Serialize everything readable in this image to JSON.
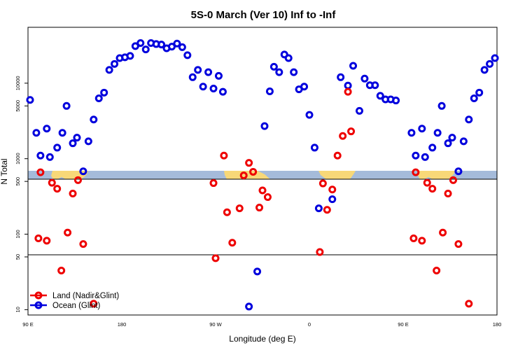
{
  "colors": {
    "land": "#ee0000",
    "ocean": "#0000dd",
    "map_ocean": "#a5bbda",
    "map_land": "#f8d878",
    "axis": "#000000",
    "reference_line": "#000000"
  },
  "chart_data": {
    "type": "scatter",
    "title": "5S-0 March (Ver 10)   Inf to -Inf",
    "xlabel": "Longitude (deg E)",
    "ylabel": "N Total",
    "x_scale": "cumulative longitude, 90E to 180 via 360 deg",
    "xlim": [
      0,
      450
    ],
    "x_ticks": [
      {
        "x": 0,
        "label": "90 E"
      },
      {
        "x": 90,
        "label": "180"
      },
      {
        "x": 180,
        "label": "90 W"
      },
      {
        "x": 270,
        "label": "0"
      },
      {
        "x": 360,
        "label": "90 E"
      },
      {
        "x": 450,
        "label": "180"
      }
    ],
    "y_scale": "log",
    "ylim": [
      8.5,
      55000
    ],
    "y_ticks": [
      {
        "y": 10,
        "label": "10"
      },
      {
        "y": 50,
        "label": "50"
      },
      {
        "y": 100,
        "label": "100"
      },
      {
        "y": 500,
        "label": "500"
      },
      {
        "y": 1000,
        "label": "1000"
      },
      {
        "y": 5000,
        "label": "5000"
      },
      {
        "y": 10000,
        "label": "10000"
      }
    ],
    "reference_lines": [
      {
        "y": 50
      },
      {
        "y": 500
      }
    ],
    "map_strip": {
      "y_low": 500,
      "y_high": 680
    },
    "legend": {
      "position": "bottom-left"
    },
    "series": [
      {
        "name": "Land (Nadir&Glint)",
        "color": "#ee0000",
        "points": [
          {
            "x": 12,
            "y": 660
          },
          {
            "x": 10,
            "y": 88
          },
          {
            "x": 18,
            "y": 82
          },
          {
            "x": 23,
            "y": 480
          },
          {
            "x": 28,
            "y": 400
          },
          {
            "x": 32,
            "y": 33
          },
          {
            "x": 38,
            "y": 105
          },
          {
            "x": 43,
            "y": 345
          },
          {
            "x": 48,
            "y": 520
          },
          {
            "x": 53,
            "y": 74
          },
          {
            "x": 63,
            "y": 12
          },
          {
            "x": 178,
            "y": 475
          },
          {
            "x": 180,
            "y": 48
          },
          {
            "x": 188,
            "y": 1100
          },
          {
            "x": 191,
            "y": 195
          },
          {
            "x": 196,
            "y": 77
          },
          {
            "x": 203,
            "y": 220
          },
          {
            "x": 207,
            "y": 600
          },
          {
            "x": 212,
            "y": 880
          },
          {
            "x": 216,
            "y": 670
          },
          {
            "x": 222,
            "y": 225
          },
          {
            "x": 225,
            "y": 380
          },
          {
            "x": 230,
            "y": 310
          },
          {
            "x": 280,
            "y": 58
          },
          {
            "x": 283,
            "y": 470
          },
          {
            "x": 287,
            "y": 210
          },
          {
            "x": 292,
            "y": 390
          },
          {
            "x": 297,
            "y": 1100
          },
          {
            "x": 302,
            "y": 2000
          },
          {
            "x": 307,
            "y": 7700
          },
          {
            "x": 310,
            "y": 2300
          },
          {
            "x": 372,
            "y": 660
          },
          {
            "x": 370,
            "y": 88
          },
          {
            "x": 378,
            "y": 82
          },
          {
            "x": 383,
            "y": 480
          },
          {
            "x": 388,
            "y": 400
          },
          {
            "x": 392,
            "y": 33
          },
          {
            "x": 398,
            "y": 105
          },
          {
            "x": 403,
            "y": 345
          },
          {
            "x": 408,
            "y": 520
          },
          {
            "x": 413,
            "y": 74
          },
          {
            "x": 423,
            "y": 12
          }
        ]
      },
      {
        "name": "Ocean (Glint)",
        "color": "#0000dd",
        "points": [
          {
            "x": 2,
            "y": 6000
          },
          {
            "x": 8,
            "y": 2200
          },
          {
            "x": 12,
            "y": 1100
          },
          {
            "x": 18,
            "y": 2500
          },
          {
            "x": 21,
            "y": 1050
          },
          {
            "x": 28,
            "y": 1400
          },
          {
            "x": 33,
            "y": 2200
          },
          {
            "x": 37,
            "y": 5000
          },
          {
            "x": 43,
            "y": 1600
          },
          {
            "x": 47,
            "y": 1900
          },
          {
            "x": 53,
            "y": 680
          },
          {
            "x": 58,
            "y": 1700
          },
          {
            "x": 63,
            "y": 3300
          },
          {
            "x": 68,
            "y": 6300
          },
          {
            "x": 73,
            "y": 7500
          },
          {
            "x": 78,
            "y": 15000
          },
          {
            "x": 83,
            "y": 18000
          },
          {
            "x": 88,
            "y": 21500
          },
          {
            "x": 93,
            "y": 22000
          },
          {
            "x": 98,
            "y": 23000
          },
          {
            "x": 103,
            "y": 31000
          },
          {
            "x": 108,
            "y": 34000
          },
          {
            "x": 113,
            "y": 28000
          },
          {
            "x": 118,
            "y": 34000
          },
          {
            "x": 123,
            "y": 33000
          },
          {
            "x": 128,
            "y": 32500
          },
          {
            "x": 133,
            "y": 29000
          },
          {
            "x": 138,
            "y": 30500
          },
          {
            "x": 143,
            "y": 33500
          },
          {
            "x": 148,
            "y": 30000
          },
          {
            "x": 153,
            "y": 23500
          },
          {
            "x": 158,
            "y": 12000
          },
          {
            "x": 163,
            "y": 15000
          },
          {
            "x": 168,
            "y": 9000
          },
          {
            "x": 173,
            "y": 14000
          },
          {
            "x": 178,
            "y": 8500
          },
          {
            "x": 183,
            "y": 12500
          },
          {
            "x": 187,
            "y": 7700
          },
          {
            "x": 212,
            "y": 11
          },
          {
            "x": 220,
            "y": 32
          },
          {
            "x": 227,
            "y": 2700
          },
          {
            "x": 232,
            "y": 7800
          },
          {
            "x": 236,
            "y": 16500
          },
          {
            "x": 241,
            "y": 14000
          },
          {
            "x": 246,
            "y": 24000
          },
          {
            "x": 250,
            "y": 21500
          },
          {
            "x": 255,
            "y": 14000
          },
          {
            "x": 260,
            "y": 8300
          },
          {
            "x": 265,
            "y": 9000
          },
          {
            "x": 270,
            "y": 3800
          },
          {
            "x": 275,
            "y": 1400
          },
          {
            "x": 279,
            "y": 220
          },
          {
            "x": 292,
            "y": 290
          },
          {
            "x": 300,
            "y": 12000
          },
          {
            "x": 307,
            "y": 9300
          },
          {
            "x": 312,
            "y": 17000
          },
          {
            "x": 318,
            "y": 4300
          },
          {
            "x": 323,
            "y": 11500
          },
          {
            "x": 328,
            "y": 9400
          },
          {
            "x": 333,
            "y": 9400
          },
          {
            "x": 338,
            "y": 6800
          },
          {
            "x": 343,
            "y": 6100
          },
          {
            "x": 348,
            "y": 6100
          },
          {
            "x": 353,
            "y": 5900
          },
          {
            "x": 368,
            "y": 2200
          },
          {
            "x": 372,
            "y": 1100
          },
          {
            "x": 378,
            "y": 2500
          },
          {
            "x": 381,
            "y": 1050
          },
          {
            "x": 388,
            "y": 1400
          },
          {
            "x": 393,
            "y": 2200
          },
          {
            "x": 397,
            "y": 5000
          },
          {
            "x": 403,
            "y": 1600
          },
          {
            "x": 407,
            "y": 1900
          },
          {
            "x": 413,
            "y": 680
          },
          {
            "x": 418,
            "y": 1700
          },
          {
            "x": 423,
            "y": 3300
          },
          {
            "x": 428,
            "y": 6300
          },
          {
            "x": 433,
            "y": 7500
          },
          {
            "x": 438,
            "y": 15000
          },
          {
            "x": 443,
            "y": 18000
          },
          {
            "x": 448,
            "y": 21500
          }
        ]
      }
    ]
  }
}
